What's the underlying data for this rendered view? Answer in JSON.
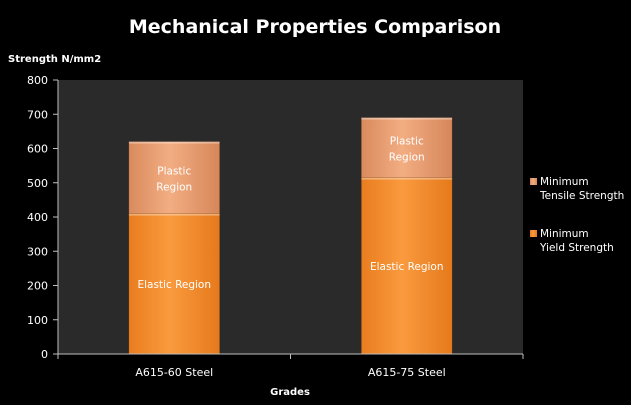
{
  "chart_data": {
    "type": "bar",
    "stacked": true,
    "title": "Mechanical Properties Comparison",
    "xlabel": "Grades",
    "ylabel": "Strength N/mm2",
    "ylim": [
      0,
      800
    ],
    "yticks": [
      "0",
      "100",
      "200",
      "300",
      "400",
      "500",
      "600",
      "700",
      "800"
    ],
    "categories": [
      "A615-60 Steel",
      "A615-75 Steel"
    ],
    "series": [
      {
        "name": "Minimum Yield Strength",
        "values": [
          410,
          515
        ],
        "segment_labels": [
          "Elastic Region",
          "Elastic Region"
        ]
      },
      {
        "name": "Minimum Tensile Strength",
        "values": [
          210,
          175
        ],
        "segment_labels": [
          "Plastic Region",
          "Plastic Region"
        ]
      }
    ],
    "legend": {
      "placement": "right",
      "entries": [
        "Minimum Tensile Strength",
        "Minimum Yield Strength"
      ]
    },
    "grid": false,
    "colors": {
      "background": "#000000",
      "plot_area": "#2a2a2a",
      "yield": "#f08a2c",
      "tensile": "#eda072",
      "text": "#ffffff",
      "axis": "#bfbfbf"
    }
  }
}
